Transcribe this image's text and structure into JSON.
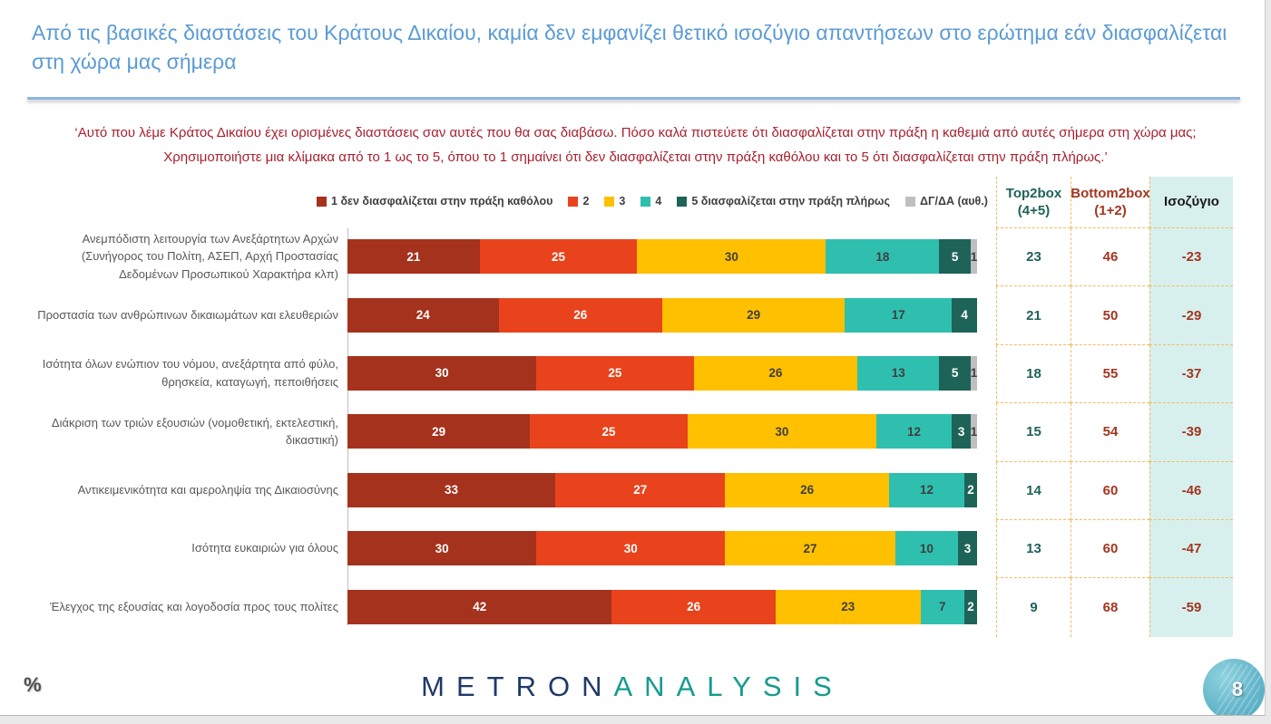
{
  "slide": {
    "title": "Από τις βασικές διαστάσεις του Κράτους Δικαίου, καμία δεν εμφανίζει θετικό ισοζύγιο απαντήσεων στο ερώτημα εάν διασφαλίζεται στη χώρα μας σήμερα",
    "subtitle_line1": "‘Αυτό που λέμε Κράτος Δικαίου έχει ορισμένες διαστάσεις σαν αυτές που θα σας διαβάσω. Πόσο καλά πιστεύετε ότι διασφαλίζεται στην πράξη η καθεμιά από αυτές σήμερα στη χώρα μας;",
    "subtitle_line2": "Χρησιμοποιήστε μια κλίμακα από το 1 ως το 5, όπου το 1 σημαίνει ότι δεν διασφαλίζεται στην πράξη καθόλου και το 5 ότι διασφαλίζεται στην πράξη πλήρως.’",
    "percent_label": "%",
    "page_number": "8",
    "logo_part1": "METRON",
    "logo_part2": "ANALYSIS"
  },
  "chart_data": {
    "type": "bar",
    "stacked": true,
    "orientation": "horizontal",
    "unit": "%",
    "xlim": [
      0,
      100
    ],
    "grid": false,
    "legend_position": "top",
    "categories": [
      "Ανεμπόδιστη λειτουργία των Ανεξάρτητων Αρχών (Συνήγορος του Πολίτη, ΑΣΕΠ, Αρχή Προστασίας Δεδομένων Προσωπικού Χαρακτήρα κλπ)",
      "Προστασία των ανθρώπινων δικαιωμάτων και ελευθεριών",
      "Ισότητα όλων ενώπιον του νόμου, ανεξάρτητα από φύλο, θρησκεία, καταγωγή, πεποιθήσεις",
      "Διάκριση των τριών εξουσιών (νομοθετική, εκτελεστική, δικαστική)",
      "Αντικειμενικότητα και αμεροληψία της Δικαιοσύνης",
      "Ισότητα ευκαιριών για όλους",
      "Έλεγχος της εξουσίας και λογοδοσία προς τους πολίτες"
    ],
    "series": [
      {
        "name": "1  δεν διασφαλίζεται στην πράξη καθόλου",
        "color": "#A5321D",
        "values": [
          21,
          24,
          30,
          29,
          33,
          30,
          42
        ]
      },
      {
        "name": "2",
        "color": "#E8431C",
        "values": [
          25,
          26,
          25,
          25,
          27,
          30,
          26
        ]
      },
      {
        "name": "3",
        "color": "#FFC000",
        "values": [
          30,
          29,
          26,
          30,
          26,
          27,
          23
        ]
      },
      {
        "name": "4",
        "color": "#2FBFAF",
        "values": [
          18,
          17,
          13,
          12,
          12,
          10,
          7
        ]
      },
      {
        "name": "5 διασφαλίζεται στην πράξη πλήρως",
        "color": "#1E6358",
        "values": [
          5,
          4,
          5,
          3,
          2,
          3,
          2
        ]
      },
      {
        "name": "ΔΓ/ΔΑ (αυθ.)",
        "color": "#BFBFBF",
        "values": [
          1,
          0,
          1,
          1,
          0,
          0,
          0
        ]
      }
    ],
    "value_label_colors": [
      "#FFFFFF",
      "#FFFFFF",
      "#3F3F3F",
      "#3F3F3F",
      "#FFFFFF",
      "#3F3F3F"
    ],
    "summary_table": {
      "header_top2box": {
        "line1": "Top2box",
        "line2": "(4+5)"
      },
      "header_bottom2box": {
        "line1": "Bottom2box",
        "line2": "(1+2)"
      },
      "header_balance": "Ισοζύγιο",
      "top2box": [
        23,
        21,
        18,
        15,
        14,
        13,
        9
      ],
      "bottom2box": [
        46,
        50,
        55,
        54,
        60,
        60,
        68
      ],
      "balance": [
        -23,
        -29,
        -37,
        -39,
        -46,
        -47,
        -59
      ]
    },
    "colors": {
      "title_blue": "#5B9BD5",
      "subtitle_red": "#A8202E",
      "teal_text": "#1F6358",
      "red_text": "#A33520",
      "mint_bg": "#D8F0ED",
      "dashed_border": "#F2BC60",
      "logo_navy": "#1F3A68",
      "logo_teal": "#169B8E"
    }
  }
}
